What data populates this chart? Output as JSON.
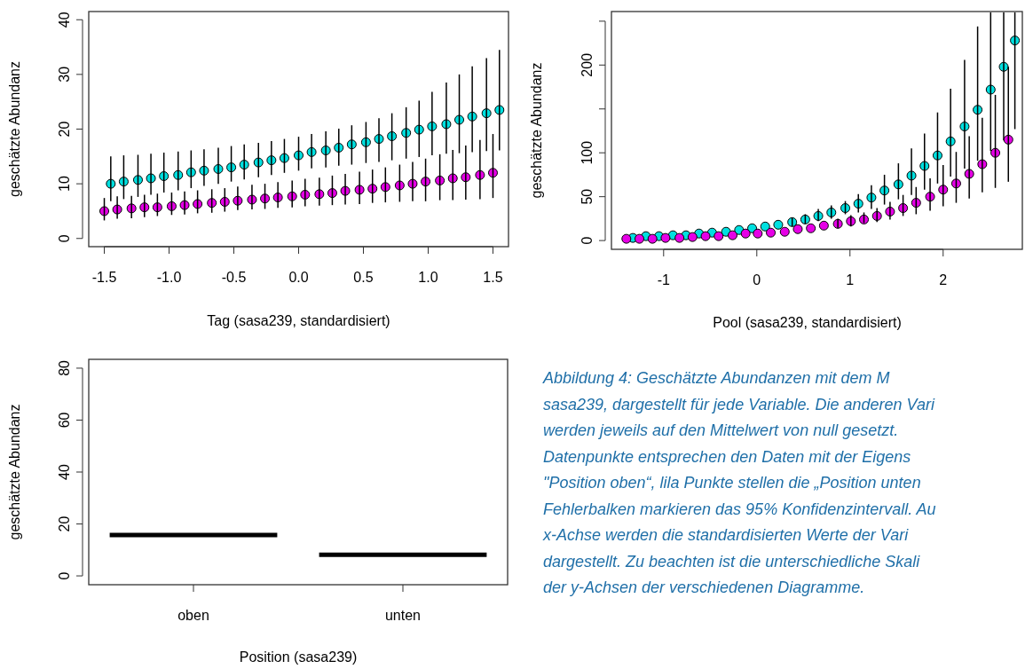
{
  "chart_data": [
    {
      "type": "scatter",
      "xlabel": "Tag (sasa239, standardisiert)",
      "ylabel": "geschätzte Abundanz",
      "xlim": [
        -1.62,
        1.62
      ],
      "ylim": [
        -1.5,
        41.5
      ],
      "xticks": [
        -1.5,
        {
          "value": -1,
          "label": "-1.0"
        },
        -0.5,
        {
          "value": 0,
          "label": "0.0"
        },
        0.5,
        {
          "value": 1,
          "label": "1.0"
        },
        1.5
      ],
      "yticks": [
        0,
        10,
        20,
        30,
        40
      ],
      "marker": "circle",
      "series": [
        {
          "color": "#00e0e0",
          "x": [
            -1.45,
            -1.35,
            -1.24,
            -1.14,
            -1.04,
            -0.93,
            -0.83,
            -0.73,
            -0.62,
            -0.52,
            -0.42,
            -0.31,
            -0.21,
            -0.11,
            0.0,
            0.1,
            0.21,
            0.31,
            0.41,
            0.52,
            0.62,
            0.72,
            0.83,
            0.93,
            1.03,
            1.14,
            1.24,
            1.34,
            1.45,
            1.55
          ],
          "values": [
            10.0,
            10.4,
            10.7,
            11.0,
            11.4,
            11.6,
            12.1,
            12.4,
            12.7,
            13.0,
            13.5,
            13.9,
            14.3,
            14.7,
            15.2,
            15.8,
            16.1,
            16.6,
            17.2,
            17.6,
            18.2,
            18.7,
            19.3,
            19.9,
            20.5,
            20.9,
            21.7,
            22.3,
            22.9,
            23.5
          ],
          "errors": [
            [
              6.8,
              15.0
            ],
            [
              7.2,
              15.2
            ],
            [
              7.6,
              15.3
            ],
            [
              8.0,
              15.5
            ],
            [
              8.4,
              15.7
            ],
            [
              8.8,
              15.9
            ],
            [
              9.2,
              16.1
            ],
            [
              9.6,
              16.3
            ],
            [
              10.0,
              16.6
            ],
            [
              10.4,
              16.9
            ],
            [
              10.8,
              17.2
            ],
            [
              11.2,
              17.5
            ],
            [
              11.6,
              17.8
            ],
            [
              12.0,
              18.2
            ],
            [
              12.4,
              18.6
            ],
            [
              12.8,
              19.1
            ],
            [
              13.0,
              19.6
            ],
            [
              13.3,
              20.1
            ],
            [
              13.5,
              20.7
            ],
            [
              13.8,
              21.3
            ],
            [
              14.0,
              22.0
            ],
            [
              14.3,
              22.9
            ],
            [
              14.6,
              24.0
            ],
            [
              14.9,
              25.2
            ],
            [
              15.2,
              26.8
            ],
            [
              15.5,
              28.5
            ],
            [
              15.6,
              30.0
            ],
            [
              15.8,
              31.5
            ],
            [
              16.0,
              33.0
            ],
            [
              16.1,
              34.5
            ]
          ]
        },
        {
          "color": "#e600e6",
          "x": [
            -1.5,
            -1.4,
            -1.29,
            -1.19,
            -1.09,
            -0.98,
            -0.88,
            -0.78,
            -0.67,
            -0.57,
            -0.47,
            -0.36,
            -0.26,
            -0.16,
            -0.05,
            0.05,
            0.16,
            0.26,
            0.36,
            0.47,
            0.57,
            0.67,
            0.78,
            0.88,
            0.98,
            1.09,
            1.19,
            1.29,
            1.4,
            1.5
          ],
          "values": [
            5.0,
            5.3,
            5.5,
            5.7,
            5.7,
            5.9,
            6.1,
            6.3,
            6.5,
            6.7,
            6.9,
            7.1,
            7.3,
            7.5,
            7.7,
            8.0,
            8.1,
            8.3,
            8.7,
            8.9,
            9.1,
            9.4,
            9.7,
            10.0,
            10.4,
            10.6,
            11.0,
            11.2,
            11.6,
            12.0
          ],
          "errors": [
            [
              3.3,
              7.4
            ],
            [
              3.6,
              7.7
            ],
            [
              3.7,
              7.8
            ],
            [
              3.9,
              8.0
            ],
            [
              4.1,
              8.2
            ],
            [
              4.3,
              8.4
            ],
            [
              4.4,
              8.6
            ],
            [
              4.6,
              8.8
            ],
            [
              4.7,
              9.0
            ],
            [
              4.9,
              9.2
            ],
            [
              5.2,
              9.5
            ],
            [
              5.3,
              9.8
            ],
            [
              5.4,
              10.0
            ],
            [
              5.6,
              10.3
            ],
            [
              5.7,
              10.6
            ],
            [
              5.9,
              10.9
            ],
            [
              6.0,
              11.1
            ],
            [
              6.1,
              11.5
            ],
            [
              6.2,
              11.8
            ],
            [
              6.3,
              12.2
            ],
            [
              6.5,
              12.6
            ],
            [
              6.6,
              13.0
            ],
            [
              6.7,
              13.5
            ],
            [
              6.8,
              14.0
            ],
            [
              6.8,
              14.6
            ],
            [
              7.0,
              15.4
            ],
            [
              7.0,
              16.2
            ],
            [
              7.1,
              17.0
            ],
            [
              7.2,
              18.0
            ],
            [
              7.4,
              19.1
            ]
          ]
        }
      ]
    },
    {
      "type": "scatter",
      "xlabel": "Pool (sasa239, standardisiert)",
      "ylabel": "geschätzte Abundanz",
      "xlim": [
        -1.56,
        2.85
      ],
      "ylim": [
        -10,
        261
      ],
      "xticks": [
        -1,
        0,
        1,
        2
      ],
      "yticks": [
        0,
        50,
        100,
        {
          "value": 150,
          "label": null
        },
        200,
        {
          "value": 250,
          "label": null
        }
      ],
      "marker": "circle",
      "series": [
        {
          "color": "#00e0e0",
          "x": [
            -1.33,
            -1.19,
            -1.05,
            -0.9,
            -0.76,
            -0.62,
            -0.48,
            -0.33,
            -0.19,
            -0.05,
            0.09,
            0.23,
            0.38,
            0.52,
            0.66,
            0.8,
            0.95,
            1.09,
            1.23,
            1.37,
            1.52,
            1.66,
            1.8,
            1.94,
            2.08,
            2.23,
            2.37,
            2.51,
            2.65,
            2.77
          ],
          "values": [
            3,
            5,
            5,
            6,
            6,
            8,
            9,
            10,
            12,
            14,
            16,
            18,
            21,
            24,
            28,
            32,
            37,
            42,
            49,
            57,
            64,
            74,
            85,
            97,
            113,
            130,
            149,
            172,
            198,
            228
          ],
          "errors": [
            null,
            null,
            null,
            null,
            null,
            null,
            null,
            null,
            null,
            null,
            null,
            null,
            [
              16,
              26
            ],
            [
              19,
              30
            ],
            [
              22,
              36
            ],
            [
              25,
              40
            ],
            [
              30,
              45
            ],
            [
              32,
              53
            ],
            [
              36,
              63
            ],
            [
              41,
              75
            ],
            [
              47,
              88
            ],
            [
              52,
              105
            ],
            [
              58,
              122
            ],
            [
              65,
              146
            ],
            [
              73,
              173
            ],
            [
              82,
              206
            ],
            [
              91,
              244
            ],
            [
              102,
              260
            ],
            [
              114,
              260
            ],
            [
              127,
              260
            ]
          ]
        },
        {
          "color": "#e600e6",
          "x": [
            -1.4,
            -1.26,
            -1.12,
            -0.98,
            -0.83,
            -0.69,
            -0.55,
            -0.41,
            -0.26,
            -0.12,
            0.01,
            0.15,
            0.3,
            0.44,
            0.58,
            0.72,
            0.87,
            1.01,
            1.15,
            1.29,
            1.43,
            1.57,
            1.71,
            1.86,
            2.0,
            2.14,
            2.28,
            2.42,
            2.56,
            2.7
          ],
          "values": [
            2,
            2,
            2,
            3,
            3,
            4,
            5,
            5,
            6,
            8,
            8,
            9,
            10,
            13,
            14,
            17,
            19,
            22,
            24,
            28,
            33,
            37,
            43,
            50,
            58,
            65,
            76,
            87,
            100,
            115
          ],
          "errors": [
            null,
            null,
            null,
            null,
            null,
            null,
            null,
            null,
            null,
            null,
            null,
            null,
            null,
            null,
            null,
            null,
            [
              14,
              25
            ],
            [
              16,
              29
            ],
            [
              20,
              32
            ],
            [
              21,
              37
            ],
            [
              24,
              44
            ],
            [
              28,
              52
            ],
            [
              30,
              61
            ],
            [
              34,
              71
            ],
            [
              39,
              86
            ],
            [
              43,
              101
            ],
            [
              48,
              119
            ],
            [
              55,
              140
            ],
            [
              60,
              166
            ],
            [
              67,
              198
            ]
          ]
        }
      ]
    },
    {
      "type": "box",
      "xlabel": "Position (sasa239)",
      "ylabel": "geschätzte Abundanz",
      "categories": [
        "oben",
        "unten"
      ],
      "ylim": [
        -3.4,
        83.4
      ],
      "yticks": [
        0,
        20,
        40,
        60,
        80
      ],
      "boxes": [
        {
          "low": 15.7,
          "q1": 15.7,
          "median": 15.7,
          "q3": 15.7,
          "high": 15.7
        },
        {
          "low": 8.1,
          "q1": 8.1,
          "median": 8.1,
          "q3": 8.1,
          "high": 8.1
        }
      ]
    },
    {
      "type": "other",
      "annotations": [
        "Abbildung 4: Geschätzte Abundanzen mit dem M",
        "sasa239, dargestellt für jede Variable. Die anderen Vari",
        "werden jeweils auf den Mittelwert von null gesetzt.",
        "Datenpunkte entsprechen den Daten mit der Eigens",
        "\"Position oben“, lila Punkte stellen die „Position unten",
        "Fehlerbalken markieren das 95% Konfidenzintervall. Au",
        "x-Achse werden die standardisierten Werte der Vari",
        "dargestellt. Zu beachten ist die unterschiedliche Skali",
        "der y-Achsen der verschiedenen Diagramme."
      ]
    }
  ]
}
